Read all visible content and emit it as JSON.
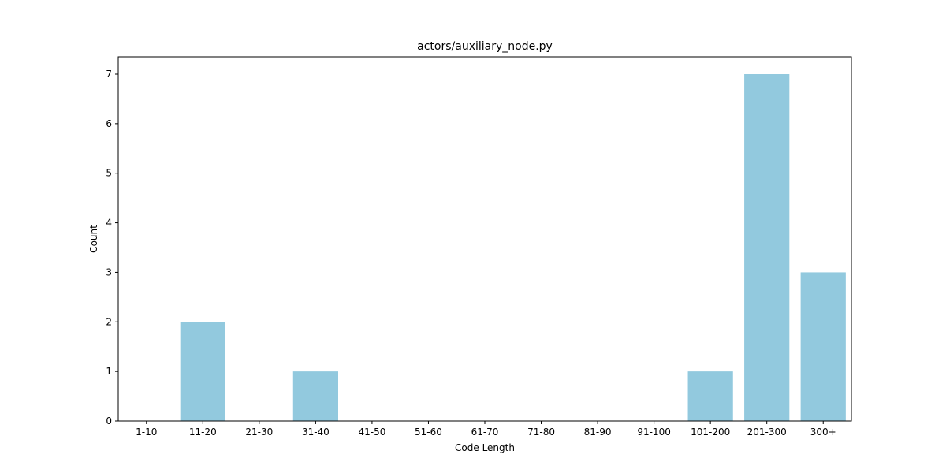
{
  "chart_data": {
    "type": "bar",
    "title": "actors/auxiliary_node.py",
    "xlabel": "Code Length",
    "ylabel": "Count",
    "categories": [
      "1-10",
      "11-20",
      "21-30",
      "31-40",
      "41-50",
      "51-60",
      "61-70",
      "71-80",
      "81-90",
      "91-100",
      "101-200",
      "201-300",
      "300+"
    ],
    "values": [
      0,
      2,
      0,
      1,
      0,
      0,
      0,
      0,
      0,
      0,
      1,
      7,
      3
    ],
    "ylim": [
      0,
      7.35
    ],
    "yticks": [
      0,
      1,
      2,
      3,
      4,
      5,
      6,
      7
    ],
    "grid": false,
    "bar_color": "#92c9de"
  }
}
